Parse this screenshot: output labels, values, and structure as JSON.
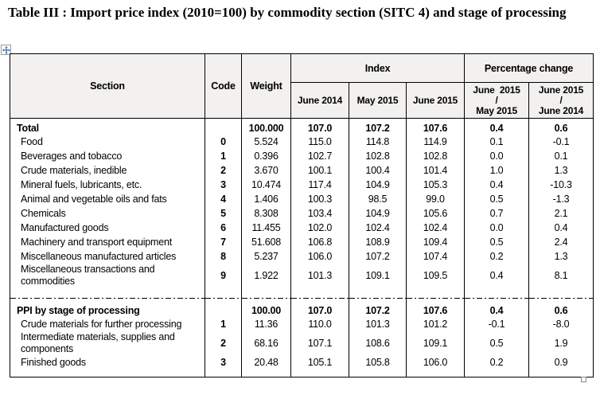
{
  "page": {
    "title": "Table III : Import price index (2010=100) by commodity section (SITC 4) and stage of processing"
  },
  "icons": {
    "move_handle": "move-cross-icon",
    "resize_handle": "resize-square-icon"
  },
  "colors": {
    "header_bg": "#f2f1ef",
    "border": "#000000",
    "move_icon_blue": "#3b6fb5"
  },
  "table": {
    "headers": {
      "section": "Section",
      "code": "Code",
      "weight": "Weight",
      "index_group": "Index",
      "pct_group": "Percentage change",
      "index_cols": [
        "June 2014",
        "May 2015",
        "June 2015"
      ],
      "pct_cols": [
        "June  2015\n/\nMay 2015",
        "June 2015\n/\nJune 2014"
      ]
    },
    "sections": [
      {
        "rows": [
          {
            "section": "Total",
            "bold": true,
            "code": "",
            "weight": "100.000",
            "values": [
              "107.0",
              "107.2",
              "107.6",
              "0.4",
              "0.6"
            ]
          },
          {
            "section": "Food",
            "bold": false,
            "code": "0",
            "weight": "5.524",
            "values": [
              "115.0",
              "114.8",
              "114.9",
              "0.1",
              "-0.1"
            ]
          },
          {
            "section": "Beverages and tobacco",
            "bold": false,
            "code": "1",
            "weight": "0.396",
            "values": [
              "102.7",
              "102.8",
              "102.8",
              "0.0",
              "0.1"
            ]
          },
          {
            "section": "Crude materials, inedible",
            "bold": false,
            "code": "2",
            "weight": "3.670",
            "values": [
              "100.1",
              "100.4",
              "101.4",
              "1.0",
              "1.3"
            ]
          },
          {
            "section": "Mineral fuels, lubricants, etc.",
            "bold": false,
            "code": "3",
            "weight": "10.474",
            "values": [
              "117.4",
              "104.9",
              "105.3",
              "0.4",
              "-10.3"
            ]
          },
          {
            "section": "Animal and vegetable oils and fats",
            "bold": false,
            "code": "4",
            "weight": "1.406",
            "values": [
              "100.3",
              "98.5",
              "99.0",
              "0.5",
              "-1.3"
            ]
          },
          {
            "section": "Chemicals",
            "bold": false,
            "code": "5",
            "weight": "8.308",
            "values": [
              "103.4",
              "104.9",
              "105.6",
              "0.7",
              "2.1"
            ]
          },
          {
            "section": "Manufactured goods",
            "bold": false,
            "code": "6",
            "weight": "11.455",
            "values": [
              "102.0",
              "102.4",
              "102.4",
              "0.0",
              "0.4"
            ]
          },
          {
            "section": "Machinery and transport equipment",
            "bold": false,
            "code": "7",
            "weight": "51.608",
            "values": [
              "106.8",
              "108.9",
              "109.4",
              "0.5",
              "2.4"
            ]
          },
          {
            "section": "Miscellaneous manufactured articles",
            "bold": false,
            "code": "8",
            "weight": "5.237",
            "values": [
              "106.0",
              "107.2",
              "107.4",
              "0.2",
              "1.3"
            ]
          },
          {
            "section": "Miscellaneous transactions and commodities",
            "bold": false,
            "code": "9",
            "weight": "1.922",
            "values": [
              "101.3",
              "109.1",
              "109.5",
              "0.4",
              "8.1"
            ]
          }
        ]
      },
      {
        "rows": [
          {
            "section": "PPI by stage of processing",
            "bold": true,
            "code": "",
            "weight": "100.00",
            "values": [
              "107.0",
              "107.2",
              "107.6",
              "0.4",
              "0.6"
            ]
          },
          {
            "section": "Crude materials for further processing",
            "bold": false,
            "code": "1",
            "weight": "11.36",
            "values": [
              "110.0",
              "101.3",
              "101.2",
              "-0.1",
              "-8.0"
            ]
          },
          {
            "section": "Intermediate materials, supplies and components",
            "bold": false,
            "code": "2",
            "weight": "68.16",
            "values": [
              "107.1",
              "108.6",
              "109.1",
              "0.5",
              "1.9"
            ]
          },
          {
            "section": "Finished goods",
            "bold": false,
            "code": "3",
            "weight": "20.48",
            "values": [
              "105.1",
              "105.8",
              "106.0",
              "0.2",
              "0.9"
            ]
          }
        ]
      }
    ]
  }
}
